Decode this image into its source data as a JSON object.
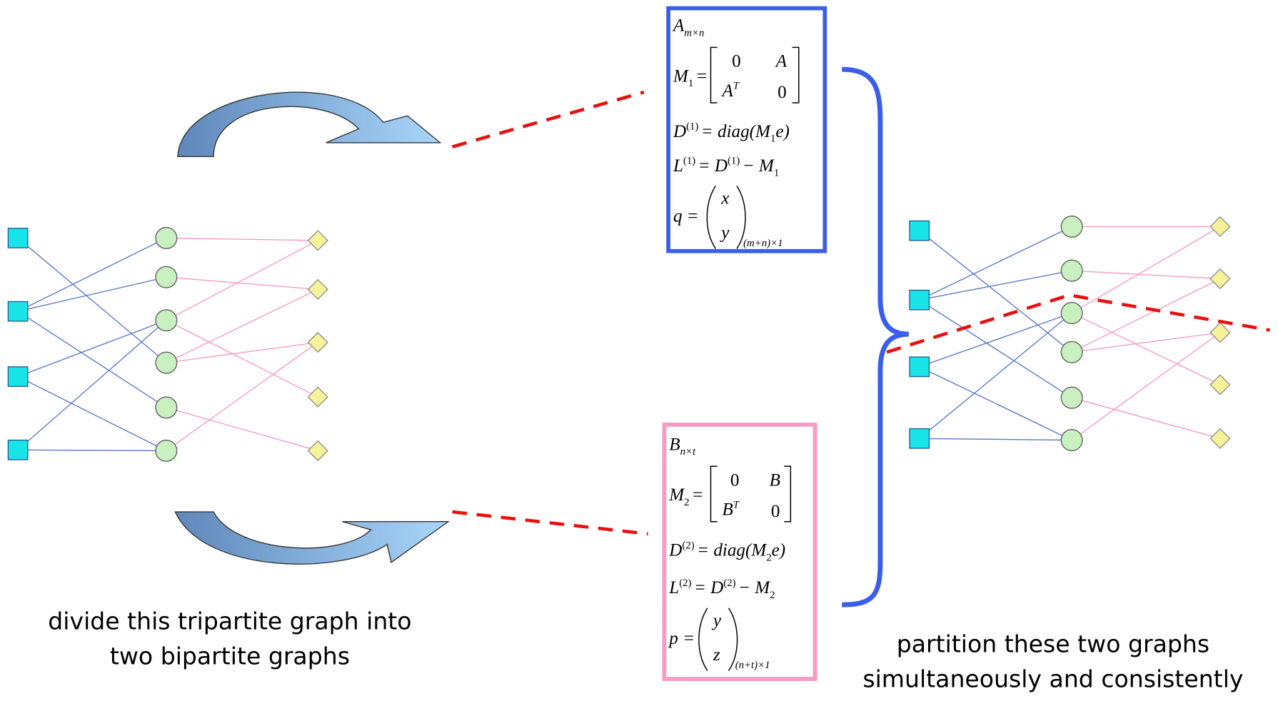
{
  "top_box": {
    "f0": [
      "A",
      "m×n"
    ],
    "f1": [
      "M",
      "1",
      "=",
      "0",
      "A",
      "A",
      "T",
      "0"
    ],
    "f2": [
      "D",
      "(1)",
      "= diag(M",
      "1",
      "e)"
    ],
    "f3": [
      "L",
      "(1)",
      "= D",
      "(1)",
      "− M",
      "1"
    ],
    "f4": [
      "q =",
      "x",
      "y",
      "(m+n)×1"
    ]
  },
  "bottom_box": {
    "f0": [
      "B",
      "n×t"
    ],
    "f1": [
      "M",
      "2",
      "=",
      "0",
      "B",
      "B",
      "T",
      "0"
    ],
    "f2": [
      "D",
      "(2)",
      "= diag(M",
      "2",
      "e)"
    ],
    "f3": [
      "L",
      "(2)",
      "= D",
      "(2)",
      "− M",
      "2"
    ],
    "f4": [
      "p =",
      "y",
      "z",
      "(n+t)×1"
    ]
  },
  "left_caption": [
    "divide this tripartite graph into",
    "two bipartite graphs"
  ],
  "right_caption": [
    "partition these two graphs",
    "simultaneously and consistently"
  ]
}
